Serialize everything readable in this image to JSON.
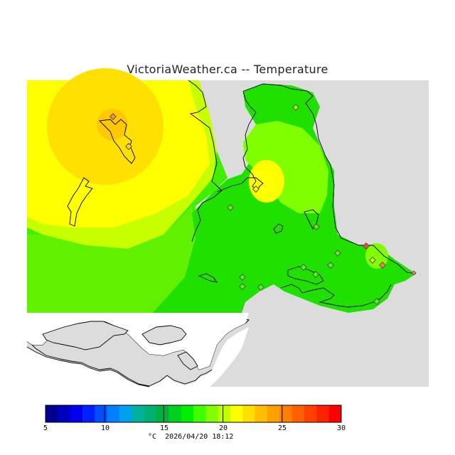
{
  "title": "VictoriaWeather.ca -- Temperature",
  "legend": {
    "ticks": [
      "5",
      "10",
      "15",
      "20",
      "25",
      "30"
    ],
    "colors": [
      "#00008f",
      "#0000bf",
      "#0000ef",
      "#0020ff",
      "#0050ff",
      "#0080ff",
      "#00a0ef",
      "#00b0a0",
      "#00b070",
      "#00b040",
      "#00d020",
      "#00ef00",
      "#40ff00",
      "#80ff00",
      "#c0ff00",
      "#ffff00",
      "#ffdf00",
      "#ffbf00",
      "#ffa000",
      "#ff8000",
      "#ff6000",
      "#ff4000",
      "#ff2000",
      "#ff0000"
    ]
  },
  "footer": {
    "unit": "°C",
    "datetime": "2026/04/20 18:12"
  }
}
